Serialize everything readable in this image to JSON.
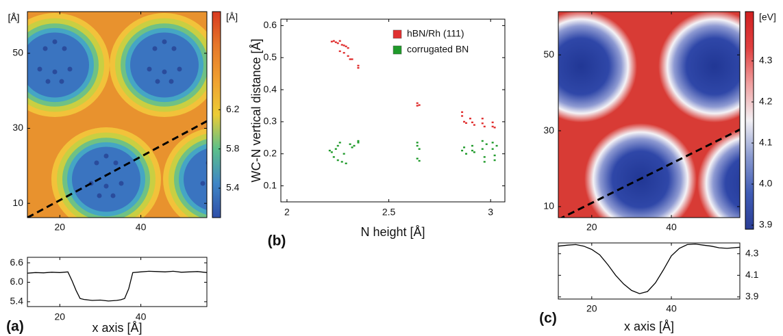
{
  "chart_data": [
    {
      "type": "heatmap",
      "ylabel": "[Å]",
      "colorbar_label": "[Å]",
      "xlim": [
        12,
        56.3
      ],
      "xticks": [
        20,
        40
      ],
      "ylim": [
        6.2,
        61.1
      ],
      "yticks": [
        10,
        30,
        50
      ],
      "clim": [
        5.1,
        7.2
      ],
      "cticks": [
        5.4,
        5.8,
        6.2
      ],
      "colormap": [
        "#2f4fa8",
        "#3f86c6",
        "#5cc08a",
        "#eccc36",
        "#f0a030",
        "#e6782a",
        "#d83a20"
      ],
      "cut_line": {
        "x": [
          12,
          56.3
        ],
        "y": [
          6.2,
          31.9
        ]
      }
    },
    {
      "type": "line",
      "panel_label": "(a)",
      "xlabel": "x axis [Å]",
      "xlim": [
        12,
        56.3
      ],
      "xticks": [
        20,
        40
      ],
      "ylim": [
        5.25,
        6.77
      ],
      "yticks": [
        5.4,
        {
          "value": 6,
          "label": "6.0"
        },
        6.6
      ],
      "x": [
        12,
        14,
        16,
        18,
        20,
        22,
        23,
        24,
        25,
        26,
        28,
        30,
        32,
        34,
        35,
        36,
        37,
        38,
        40,
        42,
        44,
        46,
        48,
        50,
        52,
        54,
        56.3
      ],
      "values": [
        6.28,
        6.3,
        6.29,
        6.31,
        6.3,
        6.32,
        6.05,
        5.75,
        5.5,
        5.47,
        5.44,
        5.45,
        5.42,
        5.44,
        5.46,
        5.5,
        5.8,
        6.3,
        6.32,
        6.34,
        6.33,
        6.32,
        6.34,
        6.31,
        6.32,
        6.33,
        6.3
      ]
    },
    {
      "type": "scatter",
      "panel_label": "(b)",
      "xlabel": "N height [Å]",
      "ylabel": "WC-N vertical distance [Å]",
      "xlim": [
        1.97,
        3.07
      ],
      "xticks": [
        2,
        2.5,
        3
      ],
      "ylim": [
        0.05,
        0.62
      ],
      "yticks": [
        0.1,
        0.2,
        0.3,
        0.4,
        0.5,
        0.6
      ],
      "legend": "upper right",
      "series": [
        {
          "name": "hBN/Rh (111)",
          "color": "#e03030",
          "x": [
            2.22,
            2.23,
            2.24,
            2.25,
            2.26,
            2.27,
            2.28,
            2.29,
            2.3,
            2.26,
            2.28,
            2.3,
            2.31,
            2.32,
            2.35,
            2.35,
            2.64,
            2.65,
            2.64,
            2.86,
            2.86,
            2.87,
            2.88,
            2.9,
            2.91,
            2.92,
            2.96,
            2.96,
            2.97,
            3.01,
            3.01,
            3.02
          ],
          "values": [
            0.55,
            0.552,
            0.548,
            0.545,
            0.552,
            0.54,
            0.538,
            0.535,
            0.53,
            0.52,
            0.515,
            0.505,
            0.495,
            0.495,
            0.475,
            0.468,
            0.358,
            0.352,
            0.35,
            0.33,
            0.318,
            0.3,
            0.296,
            0.31,
            0.298,
            0.29,
            0.31,
            0.295,
            0.285,
            0.298,
            0.285,
            0.282
          ]
        },
        {
          "name": "corrugated BN",
          "color": "#1f9a2a",
          "x": [
            2.21,
            2.22,
            2.23,
            2.24,
            2.25,
            2.26,
            2.25,
            2.27,
            2.29,
            2.28,
            2.31,
            2.32,
            2.33,
            2.35,
            2.35,
            2.64,
            2.64,
            2.65,
            2.64,
            2.65,
            2.86,
            2.87,
            2.88,
            2.91,
            2.91,
            2.92,
            2.96,
            2.96,
            2.97,
            2.97,
            2.98,
            3.01,
            3.01,
            3.02,
            3.02,
            3.03
          ],
          "values": [
            0.21,
            0.205,
            0.19,
            0.215,
            0.225,
            0.235,
            0.18,
            0.175,
            0.17,
            0.2,
            0.23,
            0.22,
            0.225,
            0.235,
            0.24,
            0.235,
            0.225,
            0.215,
            0.185,
            0.178,
            0.21,
            0.22,
            0.2,
            0.225,
            0.21,
            0.205,
            0.24,
            0.215,
            0.19,
            0.175,
            0.23,
            0.235,
            0.215,
            0.195,
            0.18,
            0.225
          ]
        }
      ]
    },
    {
      "type": "heatmap",
      "ylabel": "[Å]",
      "colorbar_label": "[eV]",
      "xlim": [
        11.6,
        57.2
      ],
      "xticks": [
        20,
        40
      ],
      "ylim": [
        7.1,
        61.4
      ],
      "yticks": [
        10,
        30,
        50
      ],
      "clim": [
        3.89,
        4.42
      ],
      "cticks": [
        {
          "value": 3.9,
          "label": "3.9"
        },
        {
          "value": 4,
          "label": "4.0"
        },
        4.1,
        4.2,
        4.3
      ],
      "colormap": [
        "#2a3d95",
        "#3f5cb5",
        "#8a9ad0",
        "#f2f0f4",
        "#f0a0a0",
        "#e04040",
        "#d02020"
      ],
      "cut_line": {
        "x": [
          11.6,
          57.2
        ],
        "y": [
          6.6,
          30.3
        ]
      }
    },
    {
      "type": "line",
      "panel_label": "(c)",
      "xlabel": "x axis [Å]",
      "yaxis_side": "right",
      "xlim": [
        11.6,
        57.2
      ],
      "xticks": [
        20,
        40
      ],
      "ylim": [
        3.88,
        4.4
      ],
      "yticks": [
        3.9,
        4.1,
        4.3
      ],
      "x": [
        11.6,
        14,
        16,
        18,
        20,
        22,
        24,
        26,
        28,
        30,
        32,
        34,
        36,
        38,
        40,
        42,
        44,
        46,
        48,
        50,
        52,
        54,
        57.2
      ],
      "values": [
        4.37,
        4.38,
        4.385,
        4.37,
        4.34,
        4.29,
        4.2,
        4.1,
        4.02,
        3.96,
        3.93,
        3.95,
        4.03,
        4.15,
        4.28,
        4.35,
        4.385,
        4.39,
        4.38,
        4.37,
        4.355,
        4.35,
        4.36
      ]
    }
  ]
}
